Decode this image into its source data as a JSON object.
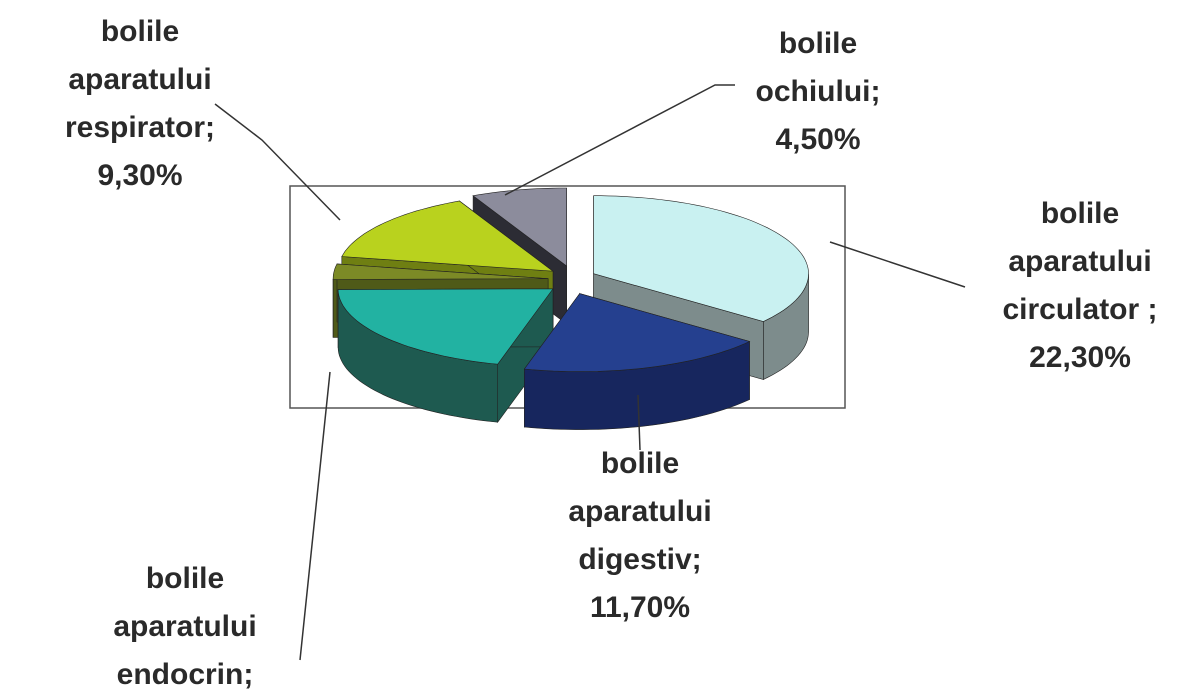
{
  "chart_data": {
    "type": "pie3d",
    "categories": [
      [
        "bolile",
        "aparatului",
        "circulator ;"
      ],
      [
        "bolile",
        "aparatului",
        "digestiv;"
      ],
      [
        "bolile",
        "aparatului",
        "endocrin;"
      ],
      null,
      [
        "bolile",
        "aparatului",
        "respirator;"
      ],
      [
        "bolile",
        "ochiului;"
      ]
    ],
    "values": [
      22.3,
      11.7,
      13,
      2,
      9.3,
      4.5
    ],
    "value_labels": [
      "22,30%",
      "11,70%",
      null,
      null,
      "9,30%",
      "4,50%"
    ],
    "colors": [
      "#c9f1f1",
      "#25408f",
      "#22b2a2",
      "#7c8a26",
      "#b9d21e",
      "#8c8c9c"
    ],
    "side_colors": [
      "#7d8c8c",
      "#17265e",
      "#1e5a50",
      "#4f5a18",
      "#6f7f12",
      "#2c2c34"
    ]
  }
}
